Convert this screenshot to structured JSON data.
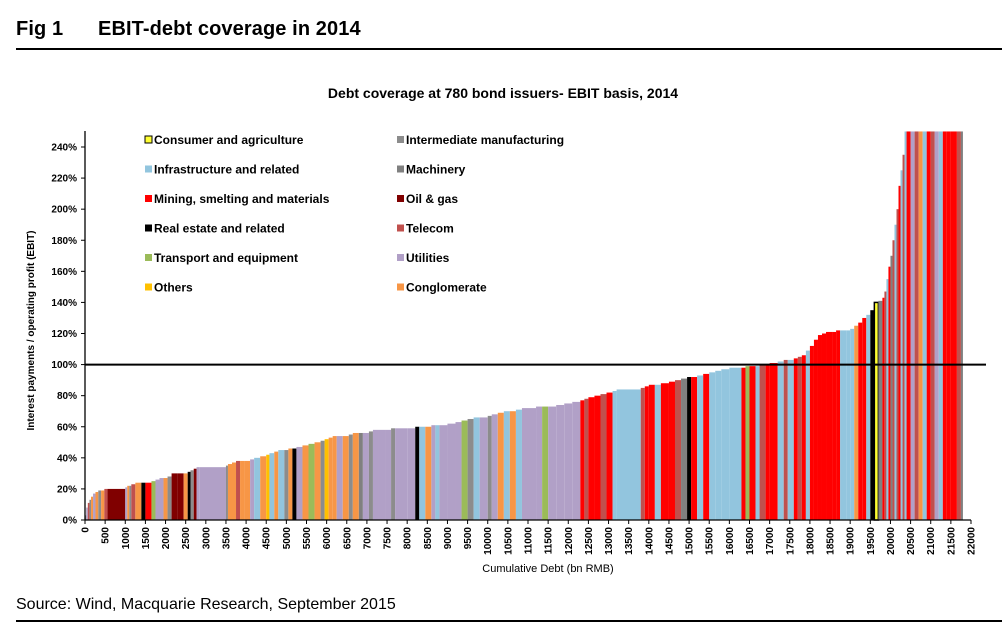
{
  "figure": {
    "number_label": "Fig 1",
    "title": "EBIT-debt coverage in 2014",
    "source": "Source: Wind, Macquarie Research, September 2015"
  },
  "chart_data": {
    "type": "bar",
    "subtype": "variable-width bar (cumulative debt vs. coverage)",
    "title": "Debt coverage at 780 bond issuers- EBIT basis, 2014",
    "xlabel": "Cumulative Debt (bn RMB)",
    "ylabel": "Interest payments / operating profit (EBIT)",
    "xlim": [
      0,
      22000
    ],
    "ylim": [
      0,
      250
    ],
    "x_ticks": [
      "0",
      "500",
      "1000",
      "1500",
      "2000",
      "2500",
      "3000",
      "3500",
      "4000",
      "4500",
      "5000",
      "5500",
      "6000",
      "6500",
      "7000",
      "7500",
      "8000",
      "8500",
      "9000",
      "9500",
      "10000",
      "10500",
      "11000",
      "11500",
      "12000",
      "12500",
      "13000",
      "13500",
      "14000",
      "14500",
      "15000",
      "15500",
      "16000",
      "16500",
      "17000",
      "17500",
      "18000",
      "18500",
      "19000",
      "19500",
      "20000",
      "20500",
      "21000",
      "21500",
      "22000"
    ],
    "y_ticks": [
      "0%",
      "20%",
      "40%",
      "60%",
      "80%",
      "100%",
      "120%",
      "140%",
      "160%",
      "180%",
      "200%",
      "220%",
      "240%"
    ],
    "reference_line": {
      "y": 100,
      "label": "100%"
    },
    "grid": false,
    "legend_position": "top-left (inside plot, two columns)",
    "legend": [
      {
        "name": "Consumer and agriculture",
        "color": "#FFFF33",
        "outlined": true
      },
      {
        "name": "Intermediate manufacturing",
        "color": "#8C8C8C"
      },
      {
        "name": "Infrastructure and related",
        "color": "#92C5DE"
      },
      {
        "name": "Machinery",
        "color": "#808080"
      },
      {
        "name": "Mining, smelting and materials",
        "color": "#FF0000"
      },
      {
        "name": "Oil & gas",
        "color": "#800000"
      },
      {
        "name": "Real estate and related",
        "color": "#000000"
      },
      {
        "name": "Telecom",
        "color": "#C0504D"
      },
      {
        "name": "Transport and equipment",
        "color": "#9BBB59"
      },
      {
        "name": "Utilities",
        "color": "#B1A0C7"
      },
      {
        "name": "Others",
        "color": "#FFC000"
      },
      {
        "name": "Conglomerate",
        "color": "#F79646"
      }
    ],
    "segments_note": "Approximate reading: each segment = issuer group [debt_start, debt_end] bn RMB with coverage %, sector index into legend",
    "segments": [
      [
        0,
        30,
        3,
        1
      ],
      [
        30,
        70,
        8,
        9
      ],
      [
        70,
        110,
        11,
        7
      ],
      [
        110,
        150,
        13,
        1
      ],
      [
        150,
        200,
        15,
        11
      ],
      [
        200,
        260,
        17,
        9
      ],
      [
        260,
        330,
        18,
        11
      ],
      [
        330,
        400,
        19,
        1
      ],
      [
        400,
        480,
        19,
        11
      ],
      [
        480,
        560,
        20,
        7
      ],
      [
        560,
        1000,
        20,
        5
      ],
      [
        1000,
        1050,
        21,
        9
      ],
      [
        1050,
        1100,
        22,
        11
      ],
      [
        1100,
        1150,
        22,
        1
      ],
      [
        1150,
        1250,
        23,
        7
      ],
      [
        1250,
        1400,
        24,
        11
      ],
      [
        1400,
        1500,
        24,
        6
      ],
      [
        1500,
        1650,
        24,
        4
      ],
      [
        1650,
        1750,
        25,
        8
      ],
      [
        1750,
        1850,
        26,
        9
      ],
      [
        1850,
        1950,
        27,
        9
      ],
      [
        1950,
        2050,
        27,
        11
      ],
      [
        2050,
        2150,
        28,
        1
      ],
      [
        2150,
        2300,
        30,
        5
      ],
      [
        2300,
        2450,
        30,
        5
      ],
      [
        2450,
        2550,
        30,
        11
      ],
      [
        2550,
        2620,
        31,
        6
      ],
      [
        2620,
        2700,
        32,
        1
      ],
      [
        2700,
        2770,
        33,
        5
      ],
      [
        2770,
        2850,
        34,
        9
      ],
      [
        2850,
        3500,
        34,
        9
      ],
      [
        3500,
        3550,
        35,
        1
      ],
      [
        3550,
        3650,
        36,
        11
      ],
      [
        3650,
        3750,
        37,
        11
      ],
      [
        3750,
        3850,
        38,
        7
      ],
      [
        3850,
        3950,
        38,
        11
      ],
      [
        3950,
        4100,
        38,
        11
      ],
      [
        4100,
        4200,
        39,
        9
      ],
      [
        4200,
        4350,
        40,
        2
      ],
      [
        4350,
        4500,
        41,
        11
      ],
      [
        4500,
        4580,
        42,
        10
      ],
      [
        4580,
        4700,
        43,
        2
      ],
      [
        4700,
        4800,
        44,
        11
      ],
      [
        4800,
        4950,
        45,
        2
      ],
      [
        4950,
        5050,
        45,
        1
      ],
      [
        5050,
        5150,
        46,
        11
      ],
      [
        5150,
        5250,
        46,
        6
      ],
      [
        5250,
        5400,
        47,
        9
      ],
      [
        5400,
        5550,
        48,
        11
      ],
      [
        5550,
        5700,
        49,
        8
      ],
      [
        5700,
        5850,
        50,
        11
      ],
      [
        5850,
        5950,
        51,
        1
      ],
      [
        5950,
        6050,
        52,
        10
      ],
      [
        6050,
        6150,
        53,
        11
      ],
      [
        6150,
        6250,
        54,
        11
      ],
      [
        6250,
        6400,
        54,
        9
      ],
      [
        6400,
        6550,
        54,
        11
      ],
      [
        6550,
        6650,
        55,
        1
      ],
      [
        6650,
        6800,
        56,
        11
      ],
      [
        6800,
        6900,
        56,
        3
      ],
      [
        6900,
        7050,
        56,
        9
      ],
      [
        7050,
        7150,
        57,
        1
      ],
      [
        7150,
        7300,
        58,
        9
      ],
      [
        7300,
        7450,
        58,
        9
      ],
      [
        7450,
        7600,
        58,
        9
      ],
      [
        7600,
        7700,
        59,
        1
      ],
      [
        7700,
        8000,
        59,
        9
      ],
      [
        8000,
        8200,
        59,
        9
      ],
      [
        8200,
        8300,
        60,
        6
      ],
      [
        8300,
        8450,
        60,
        2
      ],
      [
        8450,
        8600,
        60,
        11
      ],
      [
        8600,
        8700,
        61,
        9
      ],
      [
        8700,
        8800,
        61,
        2
      ],
      [
        8800,
        9000,
        61,
        9
      ],
      [
        9000,
        9200,
        62,
        9
      ],
      [
        9200,
        9350,
        63,
        9
      ],
      [
        9350,
        9500,
        64,
        8
      ],
      [
        9500,
        9650,
        65,
        1
      ],
      [
        9650,
        9800,
        66,
        2
      ],
      [
        9800,
        10000,
        66,
        9
      ],
      [
        10000,
        10100,
        67,
        1
      ],
      [
        10100,
        10250,
        68,
        9
      ],
      [
        10250,
        10400,
        69,
        11
      ],
      [
        10400,
        10550,
        70,
        2
      ],
      [
        10550,
        10700,
        70,
        11
      ],
      [
        10700,
        10850,
        71,
        2
      ],
      [
        10850,
        11000,
        72,
        9
      ],
      [
        11000,
        11200,
        72,
        9
      ],
      [
        11200,
        11350,
        73,
        9
      ],
      [
        11350,
        11500,
        73,
        8
      ],
      [
        11500,
        11700,
        73,
        9
      ],
      [
        11700,
        11900,
        74,
        9
      ],
      [
        11900,
        12100,
        75,
        9
      ],
      [
        12100,
        12300,
        76,
        9
      ],
      [
        12300,
        12400,
        77,
        4
      ],
      [
        12400,
        12500,
        78,
        7
      ],
      [
        12500,
        12650,
        79,
        4
      ],
      [
        12650,
        12800,
        80,
        4
      ],
      [
        12800,
        12950,
        81,
        7
      ],
      [
        12950,
        13100,
        82,
        4
      ],
      [
        13100,
        13200,
        83,
        2
      ],
      [
        13200,
        13800,
        84,
        2
      ],
      [
        13800,
        13900,
        85,
        7
      ],
      [
        13900,
        14000,
        86,
        4
      ],
      [
        14000,
        14150,
        87,
        4
      ],
      [
        14150,
        14300,
        87,
        2
      ],
      [
        14300,
        14500,
        88,
        4
      ],
      [
        14500,
        14650,
        89,
        4
      ],
      [
        14650,
        14800,
        90,
        7
      ],
      [
        14800,
        14950,
        91,
        3
      ],
      [
        14950,
        15050,
        92,
        6
      ],
      [
        15050,
        15200,
        92,
        4
      ],
      [
        15200,
        15350,
        93,
        2
      ],
      [
        15350,
        15500,
        94,
        4
      ],
      [
        15500,
        15650,
        95,
        2
      ],
      [
        15650,
        15800,
        96,
        2
      ],
      [
        15800,
        16000,
        97,
        2
      ],
      [
        16000,
        16300,
        98,
        2
      ],
      [
        16300,
        16400,
        98,
        4
      ],
      [
        16400,
        16500,
        99,
        8
      ],
      [
        16500,
        16650,
        99,
        4
      ],
      [
        16650,
        16750,
        99,
        2
      ],
      [
        16750,
        16900,
        100,
        7
      ],
      [
        16900,
        17000,
        100,
        4
      ],
      [
        17000,
        17200,
        101,
        4
      ],
      [
        17200,
        17350,
        102,
        2
      ],
      [
        17350,
        17450,
        103,
        7
      ],
      [
        17450,
        17600,
        103,
        2
      ],
      [
        17600,
        17700,
        104,
        4
      ],
      [
        17700,
        17800,
        105,
        7
      ],
      [
        17800,
        17900,
        106,
        4
      ],
      [
        17900,
        18000,
        109,
        2
      ],
      [
        18000,
        18100,
        112,
        4
      ],
      [
        18100,
        18200,
        116,
        4
      ],
      [
        18200,
        18300,
        119,
        4
      ],
      [
        18300,
        18400,
        120,
        4
      ],
      [
        18400,
        18550,
        121,
        4
      ],
      [
        18550,
        18650,
        121,
        4
      ],
      [
        18650,
        18750,
        122,
        4
      ],
      [
        18750,
        18900,
        122,
        2
      ],
      [
        18900,
        19000,
        122,
        2
      ],
      [
        19000,
        19100,
        123,
        2
      ],
      [
        19100,
        19200,
        125,
        11
      ],
      [
        19200,
        19300,
        127,
        4
      ],
      [
        19300,
        19400,
        130,
        4
      ],
      [
        19400,
        19500,
        132,
        2
      ],
      [
        19500,
        19600,
        135,
        6
      ],
      [
        19600,
        19700,
        140,
        0
      ],
      [
        19700,
        19800,
        141,
        3
      ],
      [
        19800,
        19850,
        143,
        4
      ],
      [
        19850,
        19900,
        147,
        7
      ],
      [
        19900,
        19950,
        155,
        2
      ],
      [
        19950,
        20000,
        163,
        4
      ],
      [
        20000,
        20050,
        170,
        3
      ],
      [
        20050,
        20100,
        180,
        7
      ],
      [
        20100,
        20150,
        190,
        2
      ],
      [
        20150,
        20200,
        200,
        7
      ],
      [
        20200,
        20250,
        215,
        4
      ],
      [
        20250,
        20300,
        225,
        2
      ],
      [
        20300,
        20350,
        235,
        7
      ],
      [
        20350,
        20400,
        250,
        2
      ],
      [
        20400,
        20500,
        250,
        4
      ],
      [
        20500,
        20600,
        250,
        9
      ],
      [
        20600,
        20700,
        250,
        7
      ],
      [
        20700,
        20800,
        250,
        11
      ],
      [
        20800,
        20900,
        250,
        2
      ],
      [
        20900,
        21000,
        250,
        4
      ],
      [
        21000,
        21100,
        250,
        7
      ],
      [
        21100,
        21200,
        250,
        9
      ],
      [
        21200,
        21300,
        250,
        2
      ],
      [
        21300,
        21400,
        250,
        4
      ],
      [
        21400,
        21500,
        250,
        4
      ],
      [
        21500,
        21650,
        250,
        4
      ],
      [
        21650,
        21750,
        250,
        7
      ],
      [
        21750,
        21800,
        250,
        3
      ]
    ]
  }
}
